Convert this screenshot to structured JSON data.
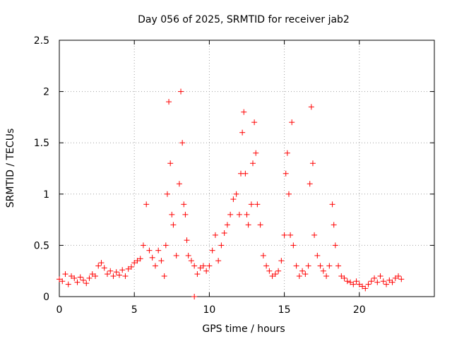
{
  "chart_data": {
    "type": "scatter",
    "title": "Day 056 of 2025, SRMTID for receiver jab2",
    "xlabel": "GPS time / hours",
    "ylabel": "SRMTID / TECUs",
    "xlim": [
      0,
      25
    ],
    "ylim": [
      0,
      2.5
    ],
    "x_ticks": [
      "0",
      "5",
      "10",
      "15",
      "20"
    ],
    "y_ticks": [
      "0",
      "0.5",
      "1",
      "1.5",
      "2",
      "2.5"
    ],
    "grid": true,
    "marker": "+",
    "color": "#ff0000",
    "series": [
      {
        "name": "SRMTID",
        "points": [
          [
            0.0,
            0.17
          ],
          [
            0.2,
            0.15
          ],
          [
            0.4,
            0.22
          ],
          [
            0.6,
            0.12
          ],
          [
            0.8,
            0.2
          ],
          [
            1.0,
            0.18
          ],
          [
            1.2,
            0.14
          ],
          [
            1.4,
            0.19
          ],
          [
            1.6,
            0.16
          ],
          [
            1.8,
            0.13
          ],
          [
            2.0,
            0.18
          ],
          [
            2.2,
            0.22
          ],
          [
            2.4,
            0.2
          ],
          [
            2.6,
            0.3
          ],
          [
            2.8,
            0.33
          ],
          [
            3.0,
            0.28
          ],
          [
            3.2,
            0.22
          ],
          [
            3.4,
            0.25
          ],
          [
            3.6,
            0.2
          ],
          [
            3.8,
            0.24
          ],
          [
            4.0,
            0.21
          ],
          [
            4.2,
            0.26
          ],
          [
            4.4,
            0.2
          ],
          [
            4.6,
            0.27
          ],
          [
            4.8,
            0.29
          ],
          [
            5.0,
            0.33
          ],
          [
            5.2,
            0.35
          ],
          [
            5.4,
            0.37
          ],
          [
            5.6,
            0.5
          ],
          [
            5.8,
            0.9
          ],
          [
            6.0,
            0.45
          ],
          [
            6.2,
            0.38
          ],
          [
            6.4,
            0.3
          ],
          [
            6.6,
            0.45
          ],
          [
            6.8,
            0.35
          ],
          [
            7.0,
            0.2
          ],
          [
            7.1,
            0.5
          ],
          [
            7.2,
            1.0
          ],
          [
            7.3,
            1.9
          ],
          [
            7.4,
            1.3
          ],
          [
            7.5,
            0.8
          ],
          [
            7.6,
            0.7
          ],
          [
            7.8,
            0.4
          ],
          [
            8.0,
            1.1
          ],
          [
            8.1,
            2.0
          ],
          [
            8.2,
            1.5
          ],
          [
            8.3,
            0.9
          ],
          [
            8.4,
            0.8
          ],
          [
            8.5,
            0.55
          ],
          [
            8.6,
            0.4
          ],
          [
            8.8,
            0.35
          ],
          [
            9.0,
            0.3
          ],
          [
            9.2,
            0.22
          ],
          [
            9.4,
            0.28
          ],
          [
            9.6,
            0.3
          ],
          [
            9.8,
            0.25
          ],
          [
            10.0,
            0.3
          ],
          [
            10.2,
            0.45
          ],
          [
            10.4,
            0.6
          ],
          [
            10.6,
            0.35
          ],
          [
            10.8,
            0.5
          ],
          [
            11.0,
            0.62
          ],
          [
            11.2,
            0.7
          ],
          [
            11.4,
            0.8
          ],
          [
            11.6,
            0.95
          ],
          [
            11.8,
            1.0
          ],
          [
            12.0,
            0.8
          ],
          [
            12.1,
            1.2
          ],
          [
            12.2,
            1.6
          ],
          [
            12.3,
            1.8
          ],
          [
            12.4,
            1.2
          ],
          [
            12.5,
            0.8
          ],
          [
            12.6,
            0.7
          ],
          [
            12.8,
            0.9
          ],
          [
            12.9,
            1.3
          ],
          [
            13.0,
            1.7
          ],
          [
            13.1,
            1.4
          ],
          [
            13.2,
            0.9
          ],
          [
            13.4,
            0.7
          ],
          [
            13.6,
            0.4
          ],
          [
            13.8,
            0.3
          ],
          [
            14.0,
            0.25
          ],
          [
            14.2,
            0.2
          ],
          [
            14.4,
            0.22
          ],
          [
            14.6,
            0.25
          ],
          [
            14.8,
            0.35
          ],
          [
            15.0,
            0.6
          ],
          [
            15.1,
            1.2
          ],
          [
            15.2,
            1.4
          ],
          [
            15.3,
            1.0
          ],
          [
            15.4,
            0.6
          ],
          [
            15.5,
            1.7
          ],
          [
            15.6,
            0.5
          ],
          [
            15.8,
            0.3
          ],
          [
            16.0,
            0.2
          ],
          [
            16.2,
            0.25
          ],
          [
            16.4,
            0.22
          ],
          [
            16.6,
            0.3
          ],
          [
            16.7,
            1.1
          ],
          [
            16.8,
            1.85
          ],
          [
            16.9,
            1.3
          ],
          [
            17.0,
            0.6
          ],
          [
            17.2,
            0.4
          ],
          [
            17.4,
            0.3
          ],
          [
            17.6,
            0.25
          ],
          [
            17.8,
            0.2
          ],
          [
            18.0,
            0.3
          ],
          [
            18.2,
            0.9
          ],
          [
            18.3,
            0.7
          ],
          [
            18.4,
            0.5
          ],
          [
            18.6,
            0.3
          ],
          [
            18.8,
            0.2
          ],
          [
            19.0,
            0.18
          ],
          [
            19.2,
            0.15
          ],
          [
            19.4,
            0.14
          ],
          [
            19.6,
            0.12
          ],
          [
            19.8,
            0.15
          ],
          [
            20.0,
            0.12
          ],
          [
            20.2,
            0.1
          ],
          [
            20.4,
            0.08
          ],
          [
            20.6,
            0.12
          ],
          [
            20.8,
            0.15
          ],
          [
            21.0,
            0.18
          ],
          [
            21.2,
            0.14
          ],
          [
            21.4,
            0.2
          ],
          [
            21.6,
            0.15
          ],
          [
            21.8,
            0.12
          ],
          [
            22.0,
            0.16
          ],
          [
            22.2,
            0.14
          ],
          [
            22.4,
            0.18
          ],
          [
            22.6,
            0.2
          ],
          [
            22.8,
            0.17
          ],
          [
            9.0,
            0.0
          ]
        ]
      }
    ]
  }
}
